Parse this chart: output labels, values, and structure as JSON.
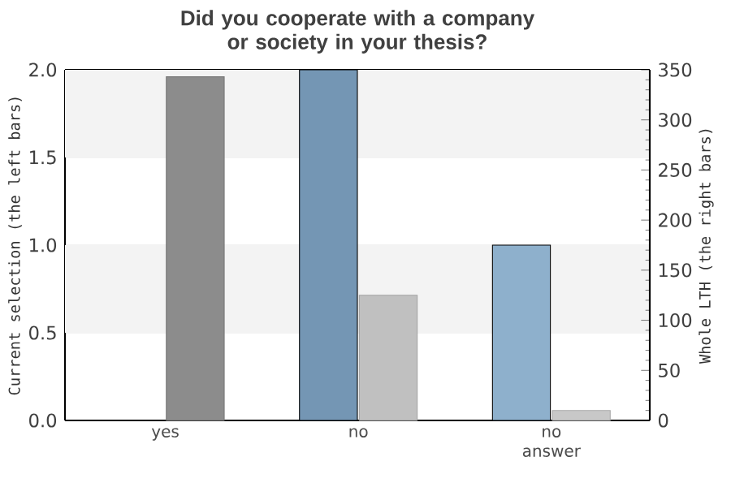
{
  "chart_data": {
    "type": "bar",
    "title": "Did you cooperate with a company or society in your thesis?",
    "ylabel": "Current selection (the left bars)",
    "y2label": "Whole LTH (the right bars)",
    "categories": [
      "yes",
      "no",
      "no answer"
    ],
    "series": [
      {
        "colors": [
          "#8eb0cc",
          "#7496b4",
          "#8eb0cc"
        ],
        "values": [
          0,
          2,
          1
        ]
      },
      {
        "axis": "y2",
        "colors": [
          "#8c8c8c",
          "#c0c0c0",
          "#c8c8c8"
        ],
        "values": [
          343,
          125,
          10
        ]
      }
    ],
    "ylim": [
      0,
      2
    ],
    "yticks": [
      {
        "value": 0,
        "label": "0.0"
      },
      {
        "value": 0.5,
        "label": "0.5"
      },
      {
        "value": 1,
        "label": "1.0"
      },
      {
        "value": 1.5,
        "label": "1.5"
      },
      {
        "value": 2,
        "label": "2.0"
      }
    ],
    "y2lim": [
      0,
      350
    ],
    "y2ticks": [
      0,
      50,
      100,
      150,
      200,
      250,
      300,
      350
    ],
    "grid": "y",
    "bands": [
      {
        "axis": "y",
        "from": 0.5,
        "to": 1,
        "color": "#f3f3f3"
      },
      {
        "axis": "y",
        "from": 1.5,
        "to": 2,
        "color": "#f3f3f3"
      }
    ]
  }
}
